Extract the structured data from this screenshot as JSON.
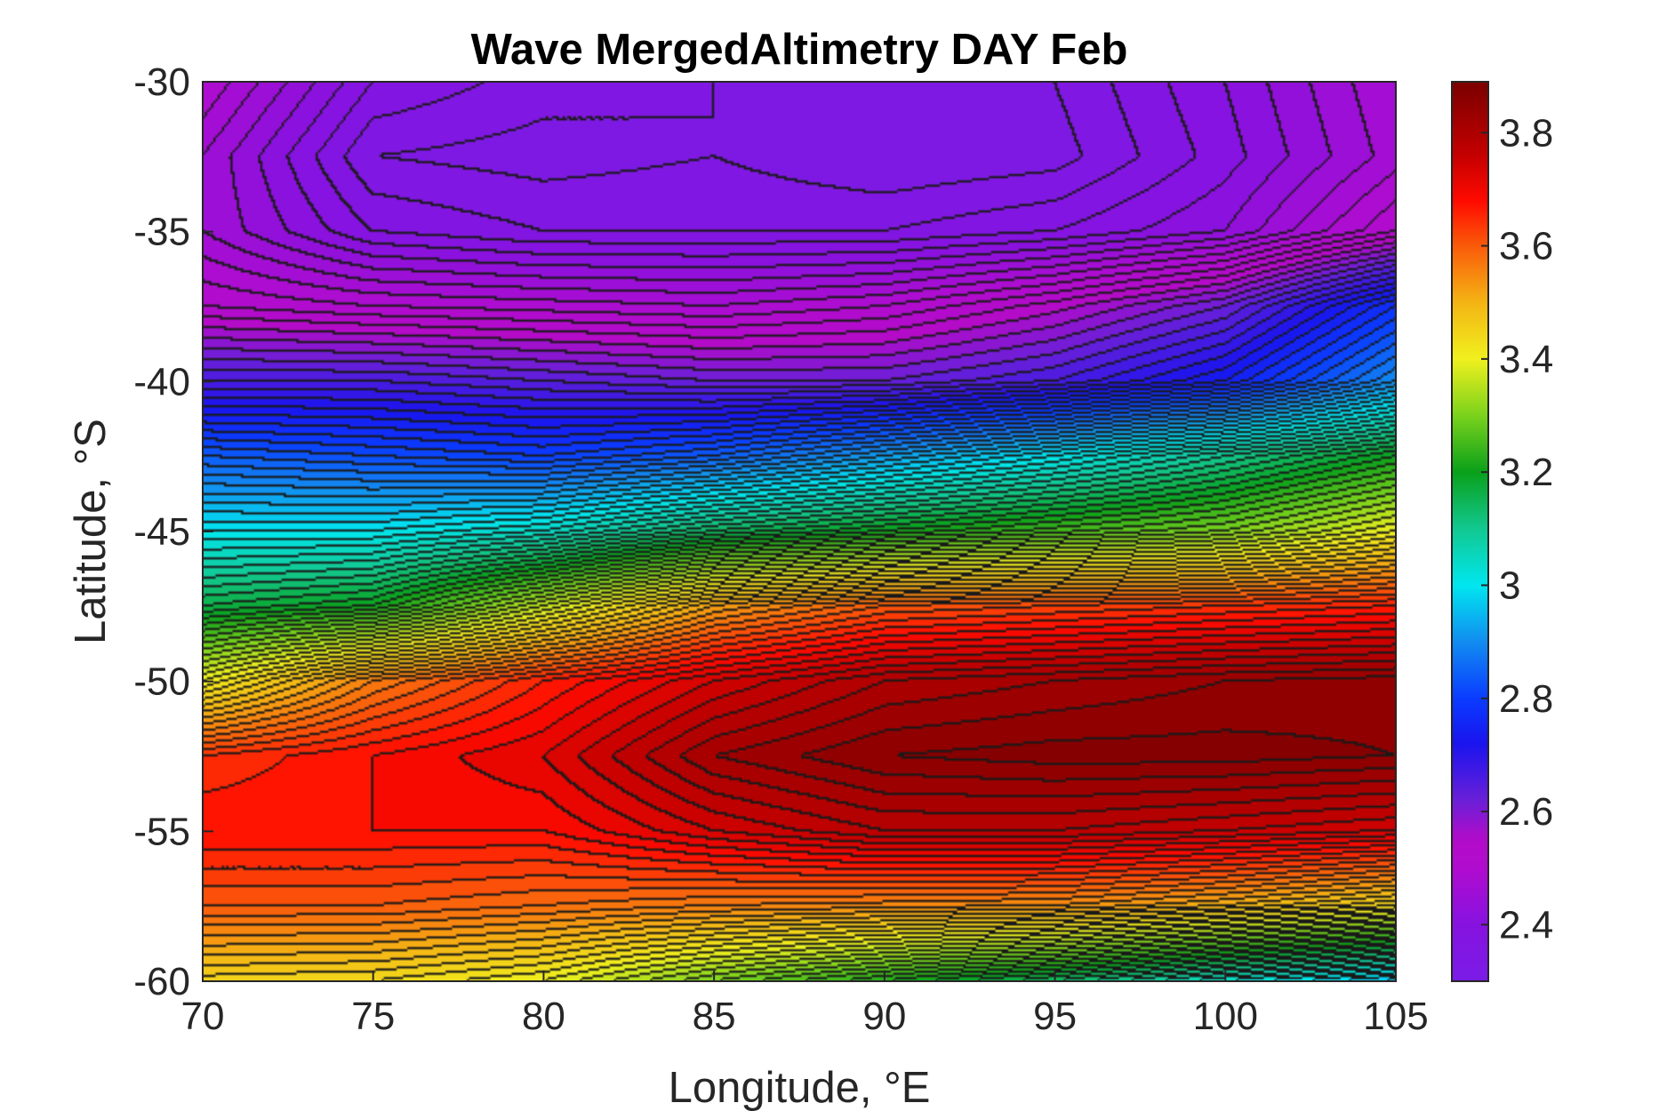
{
  "figure": {
    "title": "Wave MergedAltimetry DAY Feb"
  },
  "chart_data": {
    "type": "heatmap",
    "subtype": "filled-contour",
    "title": "Wave MergedAltimetry DAY Feb",
    "xlabel": "Longitude, °E",
    "ylabel": "Latitude, °S",
    "xlim": [
      70,
      105
    ],
    "ylim": [
      -60,
      -30
    ],
    "x_ticks": [
      70,
      75,
      80,
      85,
      90,
      95,
      100,
      105
    ],
    "x_tick_labels": [
      "70",
      "75",
      "80",
      "85",
      "90",
      "95",
      "100",
      "105"
    ],
    "y_ticks": [
      -30,
      -35,
      -40,
      -45,
      -50,
      -55,
      -60
    ],
    "y_tick_labels": [
      "-30",
      "-35",
      "-40",
      "-45",
      "-50",
      "-55",
      "-60"
    ],
    "colormap": "rainbow (violet-blue-cyan-green-yellow-red-darkred)",
    "contour_lines": true,
    "grid": false,
    "colorbar": {
      "location": "right",
      "limits": [
        2.3,
        3.89
      ],
      "ticks": [
        2.4,
        2.6,
        2.8,
        3.0,
        3.2,
        3.4,
        3.6,
        3.8
      ],
      "tick_labels": [
        "2.4",
        "2.6",
        "2.8",
        "3",
        "3.2",
        "3.4",
        "3.6",
        "3.8"
      ],
      "stops": [
        {
          "value": 2.3,
          "color": "#7a1ce6"
        },
        {
          "value": 2.4,
          "color": "#8712e0"
        },
        {
          "value": 2.5,
          "color": "#b00ccf"
        },
        {
          "value": 2.55,
          "color": "#b40bc8"
        },
        {
          "value": 2.62,
          "color": "#6a1fd8"
        },
        {
          "value": 2.72,
          "color": "#1a14ee"
        },
        {
          "value": 2.8,
          "color": "#0a3cff"
        },
        {
          "value": 2.9,
          "color": "#128cf0"
        },
        {
          "value": 3.0,
          "color": "#00e6ef"
        },
        {
          "value": 3.1,
          "color": "#12c890"
        },
        {
          "value": 3.2,
          "color": "#0aa01a"
        },
        {
          "value": 3.3,
          "color": "#7ad21c"
        },
        {
          "value": 3.4,
          "color": "#f0f01e"
        },
        {
          "value": 3.5,
          "color": "#f4b414"
        },
        {
          "value": 3.6,
          "color": "#fa5a0a"
        },
        {
          "value": 3.68,
          "color": "#ff0a00"
        },
        {
          "value": 3.76,
          "color": "#c40000"
        },
        {
          "value": 3.89,
          "color": "#7a0000"
        }
      ]
    },
    "field_model": {
      "description": "Approximate gridded field of values read from the contour map",
      "lat_rows": [
        -30,
        -32.5,
        -35,
        -37.5,
        -40,
        -42.5,
        -45,
        -47.5,
        -50,
        -52.5,
        -55,
        -57.5,
        -60
      ],
      "lon_cols": [
        70,
        75,
        80,
        85,
        90,
        95,
        100,
        105
      ],
      "values": [
        [
          2.5,
          2.38,
          2.35,
          2.34,
          2.33,
          2.34,
          2.4,
          2.48
        ],
        [
          2.46,
          2.34,
          2.33,
          2.34,
          2.32,
          2.33,
          2.39,
          2.47
        ],
        [
          2.46,
          2.38,
          2.36,
          2.36,
          2.36,
          2.38,
          2.42,
          2.52
        ],
        [
          2.52,
          2.5,
          2.49,
          2.48,
          2.5,
          2.55,
          2.62,
          2.78
        ],
        [
          2.66,
          2.66,
          2.64,
          2.62,
          2.62,
          2.66,
          2.74,
          2.9
        ],
        [
          2.84,
          2.82,
          2.8,
          2.84,
          2.92,
          3.0,
          3.1,
          3.2
        ],
        [
          3.0,
          3.0,
          3.04,
          3.14,
          3.2,
          3.25,
          3.3,
          3.4
        ],
        [
          3.16,
          3.2,
          3.36,
          3.52,
          3.6,
          3.62,
          3.64,
          3.66
        ],
        [
          3.4,
          3.56,
          3.66,
          3.74,
          3.8,
          3.82,
          3.84,
          3.85
        ],
        [
          3.64,
          3.68,
          3.72,
          3.82,
          3.86,
          3.87,
          3.87,
          3.86
        ],
        [
          3.68,
          3.68,
          3.68,
          3.74,
          3.78,
          3.78,
          3.76,
          3.74
        ],
        [
          3.6,
          3.6,
          3.58,
          3.56,
          3.55,
          3.54,
          3.5,
          3.44
        ],
        [
          3.45,
          3.44,
          3.4,
          3.3,
          3.22,
          3.14,
          3.04,
          2.95
        ]
      ]
    }
  }
}
